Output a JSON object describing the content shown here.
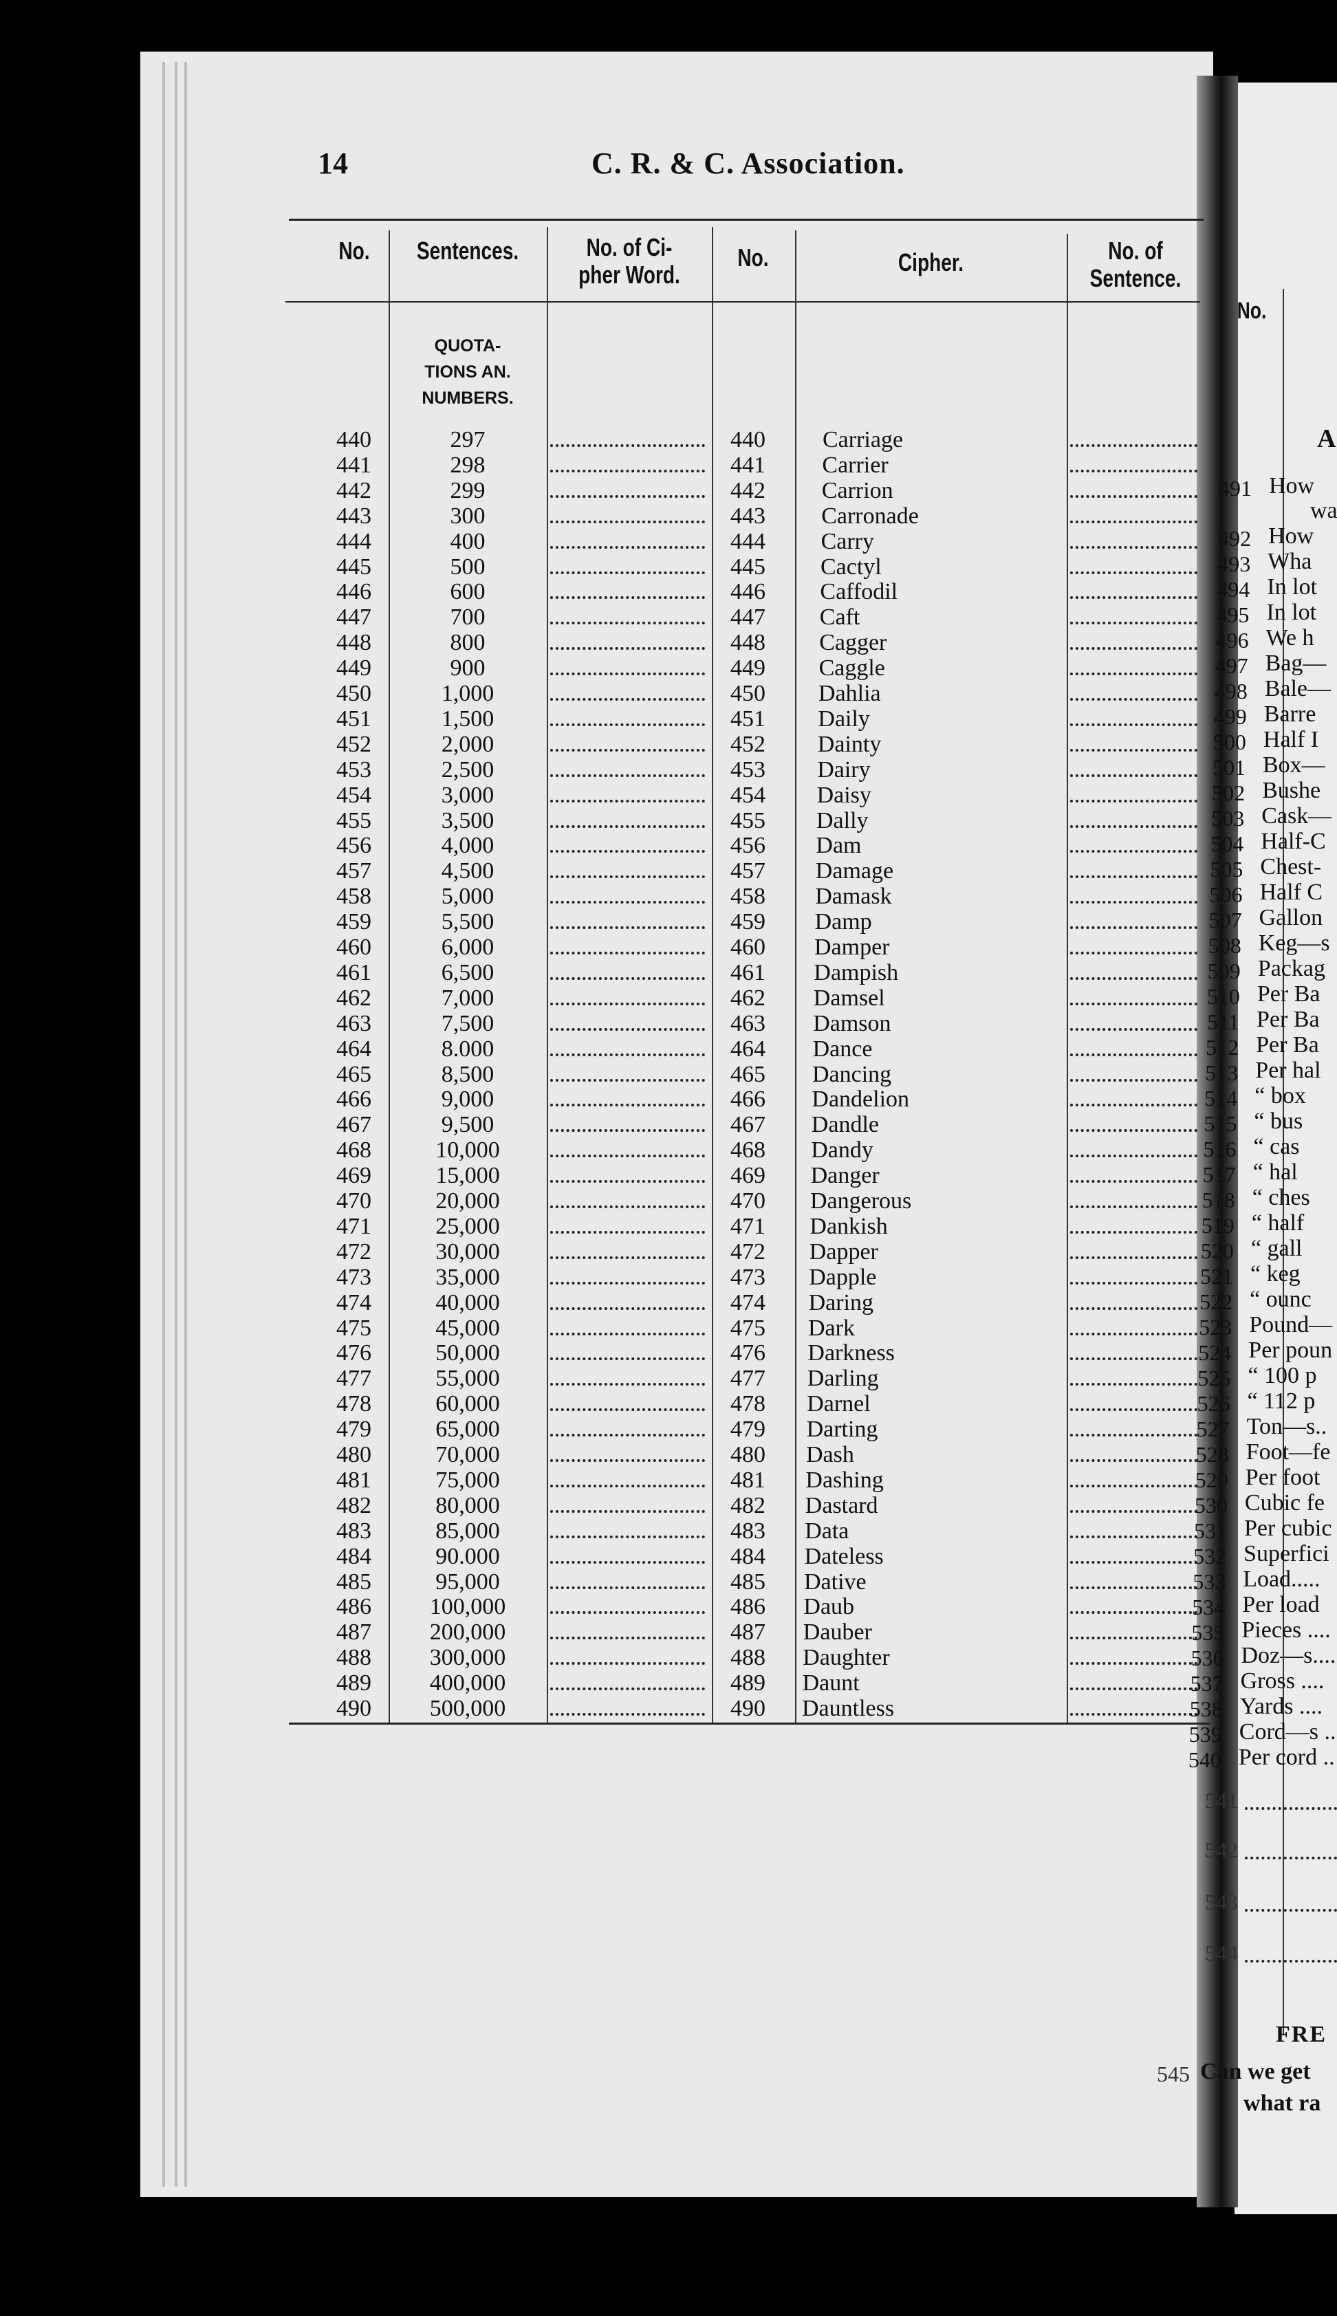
{
  "page_number": "14",
  "title": "C. R. & C. Association.",
  "left_table": {
    "headers": [
      "No.",
      "Sentences.",
      "No. of Ci-\npher Word.",
      "No.",
      "Cipher.",
      "No. of\nSentence."
    ],
    "section_label": [
      "QUOTA-",
      "TIONS AN.",
      "NUMBERS."
    ],
    "rows": [
      {
        "no": "440",
        "sentence": "297",
        "cipher": "Carriage"
      },
      {
        "no": "441",
        "sentence": "298",
        "cipher": "Carrier"
      },
      {
        "no": "442",
        "sentence": "299",
        "cipher": "Carrion"
      },
      {
        "no": "443",
        "sentence": "300",
        "cipher": "Carronade"
      },
      {
        "no": "444",
        "sentence": "400",
        "cipher": "Carry"
      },
      {
        "no": "445",
        "sentence": "500",
        "cipher": "Cactyl"
      },
      {
        "no": "446",
        "sentence": "600",
        "cipher": "Caffodil"
      },
      {
        "no": "447",
        "sentence": "700",
        "cipher": "Caft"
      },
      {
        "no": "448",
        "sentence": "800",
        "cipher": "Cagger"
      },
      {
        "no": "449",
        "sentence": "900",
        "cipher": "Caggle"
      },
      {
        "no": "450",
        "sentence": "1,000",
        "cipher": "Dahlia"
      },
      {
        "no": "451",
        "sentence": "1,500",
        "cipher": "Daily"
      },
      {
        "no": "452",
        "sentence": "2,000",
        "cipher": "Dainty"
      },
      {
        "no": "453",
        "sentence": "2,500",
        "cipher": "Dairy"
      },
      {
        "no": "454",
        "sentence": "3,000",
        "cipher": "Daisy"
      },
      {
        "no": "455",
        "sentence": "3,500",
        "cipher": "Dally"
      },
      {
        "no": "456",
        "sentence": "4,000",
        "cipher": "Dam"
      },
      {
        "no": "457",
        "sentence": "4,500",
        "cipher": "Damage"
      },
      {
        "no": "458",
        "sentence": "5,000",
        "cipher": "Damask"
      },
      {
        "no": "459",
        "sentence": "5,500",
        "cipher": "Damp"
      },
      {
        "no": "460",
        "sentence": "6,000",
        "cipher": "Damper"
      },
      {
        "no": "461",
        "sentence": "6,500",
        "cipher": "Dampish"
      },
      {
        "no": "462",
        "sentence": "7,000",
        "cipher": "Damsel"
      },
      {
        "no": "463",
        "sentence": "7,500",
        "cipher": "Damson"
      },
      {
        "no": "464",
        "sentence": "8.000",
        "cipher": "Dance"
      },
      {
        "no": "465",
        "sentence": "8,500",
        "cipher": "Dancing"
      },
      {
        "no": "466",
        "sentence": "9,000",
        "cipher": "Dandelion"
      },
      {
        "no": "467",
        "sentence": "9,500",
        "cipher": "Dandle"
      },
      {
        "no": "468",
        "sentence": "10,000",
        "cipher": "Dandy"
      },
      {
        "no": "469",
        "sentence": "15,000",
        "cipher": "Danger"
      },
      {
        "no": "470",
        "sentence": "20,000",
        "cipher": "Dangerous"
      },
      {
        "no": "471",
        "sentence": "25,000",
        "cipher": "Dankish"
      },
      {
        "no": "472",
        "sentence": "30,000",
        "cipher": "Dapper"
      },
      {
        "no": "473",
        "sentence": "35,000",
        "cipher": "Dapple"
      },
      {
        "no": "474",
        "sentence": "40,000",
        "cipher": "Daring"
      },
      {
        "no": "475",
        "sentence": "45,000",
        "cipher": "Dark"
      },
      {
        "no": "476",
        "sentence": "50,000",
        "cipher": "Darkness"
      },
      {
        "no": "477",
        "sentence": "55,000",
        "cipher": "Darling"
      },
      {
        "no": "478",
        "sentence": "60,000",
        "cipher": "Darnel"
      },
      {
        "no": "479",
        "sentence": "65,000",
        "cipher": "Darting"
      },
      {
        "no": "480",
        "sentence": "70,000",
        "cipher": "Dash"
      },
      {
        "no": "481",
        "sentence": "75,000",
        "cipher": "Dashing"
      },
      {
        "no": "482",
        "sentence": "80,000",
        "cipher": "Dastard"
      },
      {
        "no": "483",
        "sentence": "85,000",
        "cipher": "Data"
      },
      {
        "no": "484",
        "sentence": "90.000",
        "cipher": "Dateless"
      },
      {
        "no": "485",
        "sentence": "95,000",
        "cipher": "Dative"
      },
      {
        "no": "486",
        "sentence": "100,000",
        "cipher": "Daub"
      },
      {
        "no": "487",
        "sentence": "200,000",
        "cipher": "Dauber"
      },
      {
        "no": "488",
        "sentence": "300,000",
        "cipher": "Daughter"
      },
      {
        "no": "489",
        "sentence": "400,000",
        "cipher": "Daunt"
      },
      {
        "no": "490",
        "sentence": "500,000",
        "cipher": "Dauntless"
      }
    ]
  },
  "right_page": {
    "header_no": "No.",
    "section_letter": "A",
    "rows": [
      {
        "no": "491",
        "text": "How",
        "cont": "wa"
      },
      {
        "no": "492",
        "text": "How"
      },
      {
        "no": "493",
        "text": "Wha"
      },
      {
        "no": "494",
        "text": "In lot"
      },
      {
        "no": "495",
        "text": "In lot"
      },
      {
        "no": "496",
        "text": "We h"
      },
      {
        "no": "497",
        "text": "Bag—"
      },
      {
        "no": "498",
        "text": "Bale—"
      },
      {
        "no": "499",
        "text": "Barre"
      },
      {
        "no": "500",
        "text": "Half I"
      },
      {
        "no": "501",
        "text": "Box—"
      },
      {
        "no": "502",
        "text": "Bushe"
      },
      {
        "no": "503",
        "text": "Cask—"
      },
      {
        "no": "504",
        "text": "Half-C"
      },
      {
        "no": "505",
        "text": "Chest-"
      },
      {
        "no": "506",
        "text": "Half C"
      },
      {
        "no": "507",
        "text": "Gallon"
      },
      {
        "no": "508",
        "text": "Keg—s"
      },
      {
        "no": "509",
        "text": "Packag"
      },
      {
        "no": "510",
        "text": "Per Ba"
      },
      {
        "no": "511",
        "text": "Per Ba"
      },
      {
        "no": "512",
        "text": "Per Ba"
      },
      {
        "no": "513",
        "text": "Per hal"
      },
      {
        "no": "514",
        "text": "“ box"
      },
      {
        "no": "515",
        "text": "“ bus"
      },
      {
        "no": "516",
        "text": "“ cas"
      },
      {
        "no": "517",
        "text": "“ hal"
      },
      {
        "no": "518",
        "text": "“ ches"
      },
      {
        "no": "519",
        "text": "“ half"
      },
      {
        "no": "520",
        "text": "“ gall"
      },
      {
        "no": "521",
        "text": "“ keg"
      },
      {
        "no": "522",
        "text": "“ ounc"
      },
      {
        "no": "523",
        "text": "Pound—"
      },
      {
        "no": "524",
        "text": "Per poun"
      },
      {
        "no": "525",
        "text": "“ 100 p"
      },
      {
        "no": "526",
        "text": "“ 112 p"
      },
      {
        "no": "527",
        "text": "Ton—s.."
      },
      {
        "no": "528",
        "text": "Foot—fe"
      },
      {
        "no": "529",
        "text": "Per foot"
      },
      {
        "no": "530",
        "text": "Cubic fe"
      },
      {
        "no": "531",
        "text": "Per cubic"
      },
      {
        "no": "532",
        "text": "Superfici"
      },
      {
        "no": "533",
        "text": "Load....."
      },
      {
        "no": "534",
        "text": "Per load"
      },
      {
        "no": "535",
        "text": "Pieces ...."
      },
      {
        "no": "536",
        "text": "Doz—s...."
      },
      {
        "no": "537",
        "text": "Gross ...."
      },
      {
        "no": "538",
        "text": "Yards ...."
      },
      {
        "no": "539",
        "text": "Cord—s .."
      },
      {
        "no": "540",
        "text": "Per cord .."
      }
    ],
    "blank_rows": [
      "541",
      "542",
      "543",
      "544"
    ],
    "section_heading": "FRE",
    "last_row": {
      "no": "545",
      "text": "Can we get",
      "cont": "what ra"
    }
  }
}
